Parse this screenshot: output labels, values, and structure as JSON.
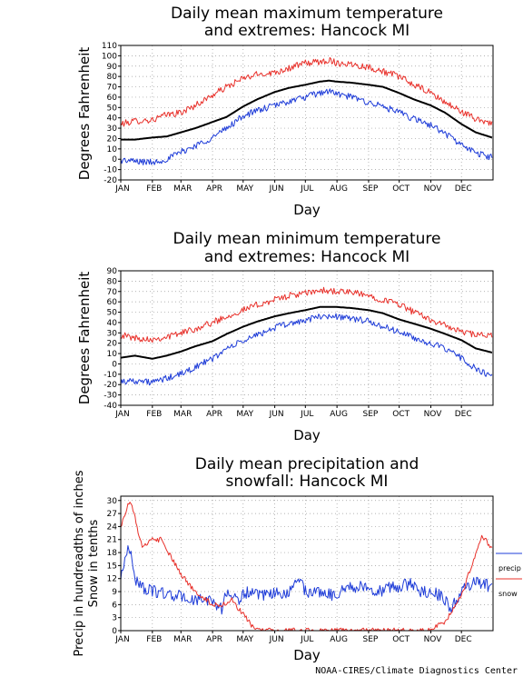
{
  "credit": "NOAA-CIRES/Climate Diagnostics Center",
  "chart_data": [
    {
      "type": "line",
      "title_line1": "Daily mean maximum temperature",
      "title_line2": "and extremes: Hancock MI",
      "xlabel": "Day",
      "ylabel": "Degrees Fahrenheit",
      "ylim": [
        -20,
        110
      ],
      "yticks": [
        -20,
        -10,
        0,
        10,
        20,
        30,
        40,
        50,
        60,
        70,
        80,
        90,
        100,
        110
      ],
      "months": [
        "JAN",
        "FEB",
        "MAR",
        "APR",
        "MAY",
        "JUN",
        "JUL",
        "AUG",
        "SEP",
        "OCT",
        "NOV",
        "DEC"
      ],
      "grid": true,
      "series": [
        {
          "color": "#e8302a",
          "width": 1,
          "x": [
            1,
            15,
            32,
            46,
            60,
            74,
            91,
            105,
            121,
            135,
            152,
            166,
            182,
            196,
            205,
            213,
            227,
            244,
            258,
            274,
            288,
            305,
            319,
            335,
            349,
            365
          ],
          "values": [
            34,
            37,
            38,
            43,
            45,
            52,
            62,
            70,
            78,
            82,
            84,
            88,
            93,
            94,
            96,
            93,
            92,
            89,
            85,
            80,
            72,
            64,
            55,
            46,
            39,
            35
          ]
        },
        {
          "color": "#000000",
          "width": 2,
          "x": [
            1,
            15,
            32,
            46,
            60,
            74,
            91,
            105,
            121,
            135,
            152,
            166,
            182,
            196,
            205,
            213,
            227,
            244,
            258,
            274,
            288,
            305,
            319,
            335,
            349,
            365
          ],
          "values": [
            19,
            19,
            21,
            22,
            26,
            30,
            36,
            41,
            51,
            58,
            65,
            69,
            72,
            75,
            76,
            75,
            74,
            72,
            70,
            64,
            58,
            52,
            45,
            34,
            26,
            21
          ]
        },
        {
          "color": "#1e3cd8",
          "width": 1,
          "x": [
            1,
            15,
            32,
            46,
            60,
            74,
            91,
            105,
            121,
            135,
            152,
            166,
            182,
            196,
            205,
            213,
            227,
            244,
            258,
            274,
            288,
            305,
            319,
            335,
            349,
            365
          ],
          "values": [
            -1,
            -2,
            -3,
            0,
            7,
            13,
            21,
            30,
            42,
            47,
            52,
            56,
            60,
            64,
            66,
            63,
            60,
            55,
            51,
            45,
            39,
            33,
            25,
            14,
            6,
            2
          ]
        }
      ]
    },
    {
      "type": "line",
      "title_line1": "Daily mean minimum temperature",
      "title_line2": "and extremes: Hancock MI",
      "xlabel": "Day",
      "ylabel": "Degrees Fahrenheit",
      "ylim": [
        -40,
        90
      ],
      "yticks": [
        -40,
        -30,
        -20,
        -10,
        0,
        10,
        20,
        30,
        40,
        50,
        60,
        70,
        80,
        90
      ],
      "months": [
        "JAN",
        "FEB",
        "MAR",
        "APR",
        "MAY",
        "JUN",
        "JUL",
        "AUG",
        "SEP",
        "OCT",
        "NOV",
        "DEC"
      ],
      "grid": true,
      "series": [
        {
          "color": "#e8302a",
          "width": 1,
          "x": [
            1,
            15,
            32,
            46,
            60,
            74,
            91,
            105,
            121,
            135,
            152,
            166,
            182,
            196,
            213,
            227,
            244,
            258,
            274,
            288,
            305,
            319,
            335,
            349,
            365
          ],
          "values": [
            28,
            25,
            24,
            26,
            30,
            34,
            40,
            46,
            52,
            57,
            62,
            66,
            68,
            71,
            70,
            69,
            66,
            62,
            58,
            50,
            43,
            37,
            31,
            28,
            27
          ]
        },
        {
          "color": "#000000",
          "width": 2,
          "x": [
            1,
            15,
            32,
            46,
            60,
            74,
            91,
            105,
            121,
            135,
            152,
            166,
            182,
            196,
            213,
            227,
            244,
            258,
            274,
            288,
            305,
            319,
            335,
            349,
            365
          ],
          "values": [
            6,
            8,
            5,
            8,
            12,
            17,
            22,
            29,
            36,
            41,
            46,
            49,
            52,
            55,
            55,
            54,
            52,
            49,
            43,
            39,
            34,
            29,
            23,
            15,
            11
          ]
        },
        {
          "color": "#1e3cd8",
          "width": 1,
          "x": [
            1,
            15,
            32,
            46,
            60,
            74,
            91,
            105,
            121,
            135,
            152,
            166,
            182,
            196,
            213,
            227,
            244,
            258,
            274,
            288,
            305,
            319,
            335,
            349,
            365
          ],
          "values": [
            -17,
            -16,
            -18,
            -14,
            -10,
            -3,
            5,
            15,
            22,
            28,
            35,
            39,
            42,
            46,
            46,
            44,
            41,
            36,
            31,
            25,
            20,
            14,
            6,
            -5,
            -13
          ]
        }
      ]
    },
    {
      "type": "line",
      "title_line1": "Daily mean precipitation and",
      "title_line2": "snowfall: Hancock MI",
      "xlabel": "Day",
      "ylabel_line1": "Precip in hundreadths of inches",
      "ylabel_line2": "Snow in tenths",
      "ylim": [
        0,
        31
      ],
      "yticks": [
        0,
        3,
        6,
        9,
        12,
        15,
        18,
        21,
        24,
        27,
        30
      ],
      "months": [
        "JAN",
        "FEB",
        "MAR",
        "APR",
        "MAY",
        "JUN",
        "JUL",
        "AUG",
        "SEP",
        "OCT",
        "NOV",
        "DEC"
      ],
      "grid": true,
      "legend": [
        "precip",
        "snow"
      ],
      "series": [
        {
          "name": "precip",
          "color": "#1e3cd8",
          "width": 1,
          "x": [
            1,
            5,
            10,
            15,
            22,
            32,
            40,
            50,
            60,
            70,
            80,
            91,
            100,
            105,
            115,
            125,
            135,
            145,
            155,
            165,
            175,
            182,
            190,
            200,
            210,
            220,
            230,
            244,
            255,
            265,
            275,
            285,
            295,
            305,
            315,
            325,
            335,
            345,
            355,
            365
          ],
          "values": [
            12,
            17,
            19,
            12,
            10,
            9,
            9,
            8,
            8,
            7,
            7,
            7,
            5,
            9,
            7,
            9,
            8,
            8,
            9,
            8,
            13,
            9,
            9,
            9,
            8,
            10,
            10,
            10,
            9,
            10,
            10,
            11,
            9,
            9,
            8,
            5,
            9,
            11,
            11,
            10
          ]
        },
        {
          "name": "snow",
          "color": "#e8302a",
          "width": 1,
          "x": [
            1,
            5,
            10,
            15,
            22,
            32,
            40,
            50,
            60,
            70,
            80,
            91,
            100,
            110,
            120,
            130,
            140,
            155,
            175,
            200,
            230,
            260,
            290,
            300,
            310,
            318,
            325,
            335,
            345,
            355,
            365
          ],
          "values": [
            24,
            27,
            30,
            26,
            19,
            21,
            21,
            17,
            13,
            10,
            8,
            6,
            6,
            7,
            4,
            1,
            0,
            0,
            0,
            0,
            0,
            0,
            0,
            0,
            1,
            2,
            4,
            8,
            15,
            22,
            19
          ]
        }
      ]
    }
  ]
}
